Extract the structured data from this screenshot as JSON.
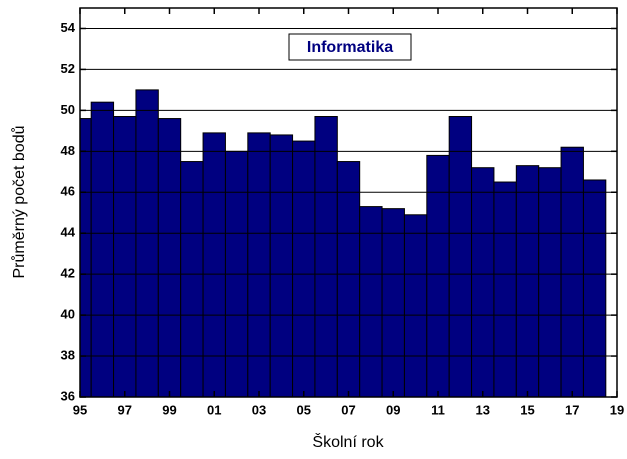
{
  "chart_data": {
    "type": "bar",
    "title": "Informatika",
    "x_label": "Školní rok",
    "y_label": "Průměrný počet bodů",
    "x": [
      1995,
      1996,
      1997,
      1998,
      1999,
      2000,
      2001,
      2002,
      2003,
      2004,
      2005,
      2006,
      2007,
      2008,
      2009,
      2010,
      2011,
      2012,
      2013,
      2014,
      2015,
      2016,
      2017,
      2018
    ],
    "values": [
      49.6,
      50.4,
      49.7,
      51.0,
      49.6,
      47.5,
      48.9,
      48.0,
      48.9,
      48.8,
      48.5,
      49.7,
      47.5,
      45.3,
      45.2,
      44.9,
      47.8,
      49.7,
      47.2,
      46.5,
      47.3,
      47.2,
      48.2,
      46.6
    ],
    "color": "#000080",
    "xlim": [
      1995,
      2019
    ],
    "xticks": [
      {
        "value": 1995,
        "label": "95"
      },
      {
        "value": 1997,
        "label": "97"
      },
      {
        "value": 1999,
        "label": "99"
      },
      {
        "value": 2001,
        "label": "01"
      },
      {
        "value": 2003,
        "label": "03"
      },
      {
        "value": 2005,
        "label": "05"
      },
      {
        "value": 2007,
        "label": "07"
      },
      {
        "value": 2009,
        "label": "09"
      },
      {
        "value": 2011,
        "label": "11"
      },
      {
        "value": 2013,
        "label": "13"
      },
      {
        "value": 2015,
        "label": "15"
      },
      {
        "value": 2017,
        "label": "17"
      },
      {
        "value": 2019,
        "label": "19"
      }
    ],
    "ylim": [
      36,
      55
    ],
    "yticks": [
      36,
      38,
      40,
      42,
      44,
      46,
      48,
      50,
      52,
      54
    ],
    "grid": true
  }
}
